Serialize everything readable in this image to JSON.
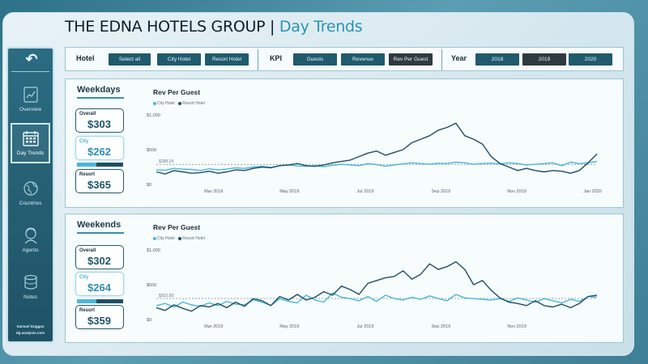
{
  "title": {
    "main": "THE EDNA HOTELS GROUP |",
    "sub": "Day Trends"
  },
  "sidebar": {
    "back_icon": "back-arrow-icon",
    "items": [
      {
        "label": "Overview",
        "icon": "chart-icon"
      },
      {
        "label": "Day Trends",
        "icon": "calendar-icon",
        "active": true
      },
      {
        "label": "Countries",
        "icon": "globe-icon"
      },
      {
        "label": "Agents",
        "icon": "agent-icon"
      },
      {
        "label": "Notes",
        "icon": "notes-icon"
      }
    ],
    "footer_line1": "Samuel Duggan",
    "footer_line2": "dg-analysis.com"
  },
  "filters": {
    "hotel_label": "Hotel",
    "hotel_buttons": [
      "Select all",
      "City Hotel",
      "Resort Hotel"
    ],
    "kpi_label": "KPI",
    "kpi_buttons": [
      "Guests",
      "Revenue",
      "Rev Per Guest"
    ],
    "kpi_selected": "Rev Per Guest",
    "year_label": "Year",
    "year_buttons": [
      "2018",
      "2019",
      "2020"
    ],
    "year_selected": "2019"
  },
  "weekdays": {
    "title": "Weekdays",
    "overall_label": "Overall",
    "overall_value": "$303",
    "city_label": "City",
    "city_value": "$262",
    "resort_label": "Resort",
    "resort_value": "$365",
    "city_share": 0.42
  },
  "weekends": {
    "title": "Weekends",
    "overall_label": "Overall",
    "overall_value": "$302",
    "city_label": "City",
    "city_value": "$264",
    "resort_label": "Resort",
    "resort_value": "$359",
    "city_share": 0.42
  },
  "chart_data": [
    {
      "type": "line",
      "title": "Rev Per Guest",
      "x_tick_labels": [
        "Mar 2019",
        "May 2019",
        "Jul 2019",
        "Sep 2019",
        "Nov 2019",
        "Jan 2020"
      ],
      "y_tick_labels": [
        "$1,000",
        "$500",
        "$0"
      ],
      "ylim": [
        0,
        1000
      ],
      "xlim": [
        0,
        50
      ],
      "average_line": {
        "label": "$288.24",
        "value": 288
      },
      "series": [
        {
          "name": "City Hotel",
          "color": "#4bb6d7",
          "values": [
            210,
            205,
            230,
            220,
            215,
            200,
            225,
            210,
            220,
            240,
            230,
            250,
            260,
            245,
            270,
            280,
            265,
            260,
            270,
            255,
            275,
            290,
            280,
            270,
            300,
            285,
            260,
            280,
            295,
            310,
            300,
            290,
            305,
            300,
            320,
            310,
            290,
            300,
            305,
            295,
            310,
            300,
            280,
            290,
            300,
            310,
            270,
            320,
            300,
            310,
            330
          ]
        },
        {
          "name": "Resort Hotel",
          "color": "#1f4f63",
          "values": [
            180,
            150,
            200,
            180,
            160,
            170,
            190,
            160,
            180,
            210,
            200,
            230,
            250,
            240,
            270,
            280,
            300,
            270,
            260,
            280,
            310,
            330,
            350,
            400,
            450,
            480,
            420,
            460,
            500,
            600,
            650,
            700,
            780,
            820,
            880,
            700,
            650,
            580,
            400,
            300,
            250,
            200,
            230,
            200,
            180,
            200,
            190,
            160,
            200,
            310,
            440
          ]
        }
      ]
    },
    {
      "type": "line",
      "title": "Rev Per Guest",
      "x_tick_labels": [
        "Mar 2019",
        "May 2019",
        "Jul 2019",
        "Sep 2019",
        "Nov 2019"
      ],
      "y_tick_labels": [
        "$1,000",
        "$500",
        "$0"
      ],
      "ylim": [
        0,
        1000
      ],
      "xlim": [
        0,
        50
      ],
      "average_line": {
        "label": "$302.58",
        "value": 302
      },
      "series": [
        {
          "name": "City Hotel",
          "color": "#4bb6d7",
          "values": [
            200,
            230,
            180,
            250,
            210,
            190,
            240,
            200,
            260,
            220,
            210,
            280,
            250,
            200,
            300,
            260,
            240,
            350,
            280,
            250,
            380,
            320,
            300,
            270,
            330,
            260,
            350,
            300,
            280,
            320,
            290,
            340,
            300,
            270,
            360,
            310,
            300,
            290,
            280,
            300,
            260,
            310,
            280,
            250,
            300,
            270,
            240,
            290,
            260,
            330,
            320
          ]
        },
        {
          "name": "Resort Hotel",
          "color": "#1f4f63",
          "values": [
            170,
            130,
            210,
            160,
            120,
            200,
            180,
            230,
            170,
            250,
            190,
            300,
            270,
            200,
            330,
            280,
            360,
            280,
            320,
            400,
            350,
            480,
            430,
            360,
            520,
            560,
            600,
            620,
            700,
            580,
            650,
            800,
            720,
            760,
            830,
            720,
            500,
            560,
            420,
            310,
            250,
            230,
            200,
            270,
            200,
            180,
            220,
            170,
            230,
            330,
            350
          ]
        }
      ]
    }
  ]
}
